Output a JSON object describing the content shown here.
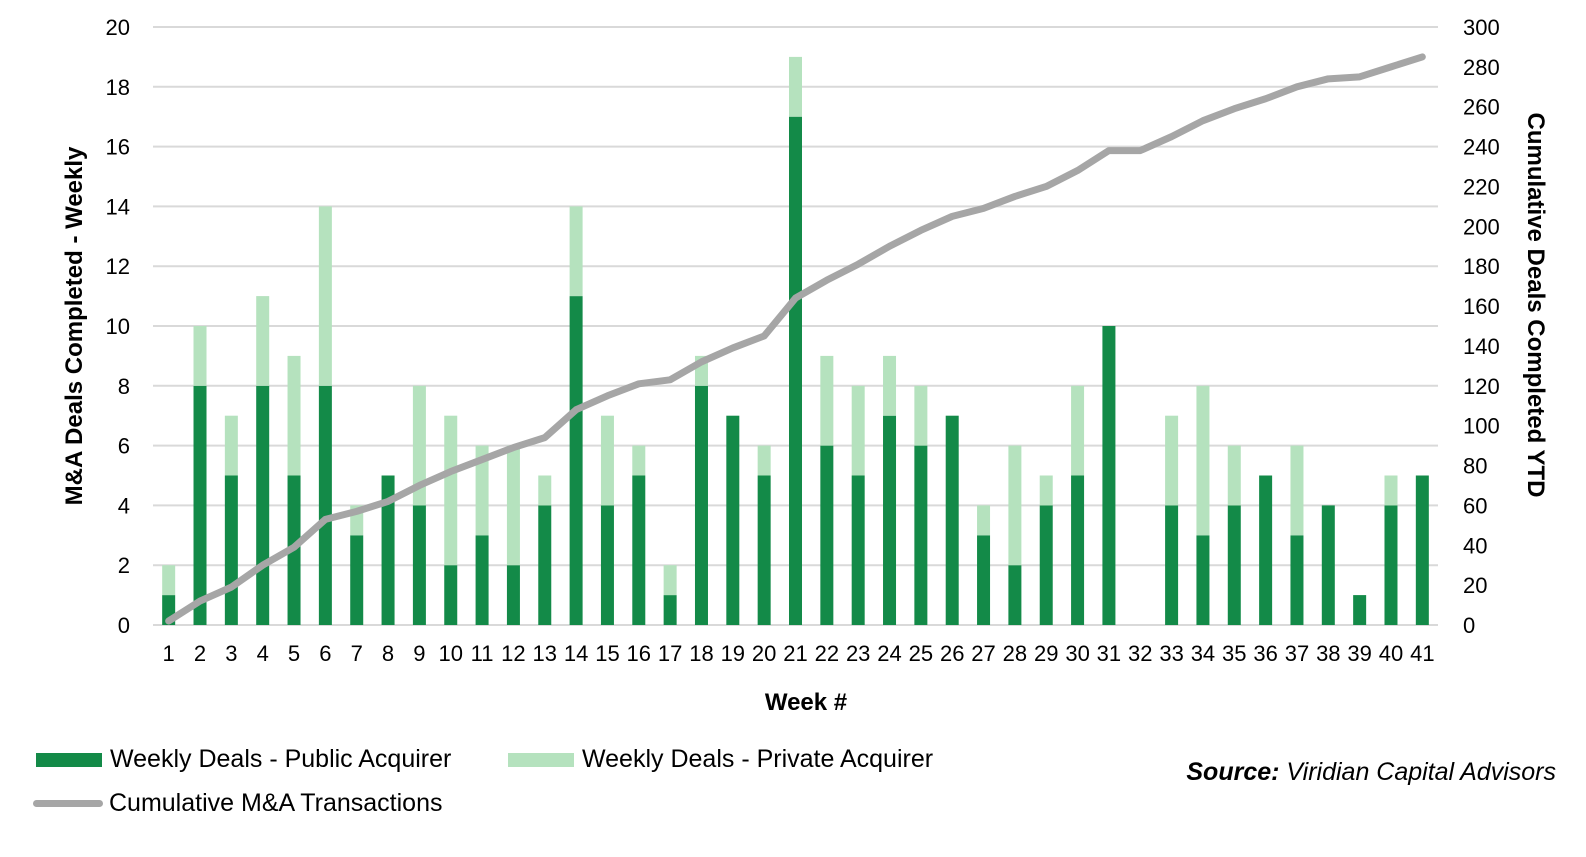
{
  "chart_data": {
    "type": "bar",
    "stacked": true,
    "xlabel": "Week #",
    "ylabel": "M&A Deals Completed - Weekly",
    "y2label": "Cumulative Deals Completed YTD",
    "ylim": [
      0,
      20
    ],
    "y2lim": [
      0,
      300
    ],
    "yticks": [
      "0",
      "2",
      "4",
      "6",
      "8",
      "10",
      "12",
      "14",
      "16",
      "18",
      "20"
    ],
    "y2ticks": [
      "0",
      "20",
      "40",
      "60",
      "80",
      "100",
      "120",
      "140",
      "160",
      "180",
      "200",
      "220",
      "240",
      "260",
      "280",
      "300"
    ],
    "grid": true,
    "categories": [
      "1",
      "2",
      "3",
      "4",
      "5",
      "6",
      "7",
      "8",
      "9",
      "10",
      "11",
      "12",
      "13",
      "14",
      "15",
      "16",
      "17",
      "18",
      "19",
      "20",
      "21",
      "22",
      "23",
      "24",
      "25",
      "26",
      "27",
      "28",
      "29",
      "30",
      "31",
      "32",
      "33",
      "34",
      "35",
      "36",
      "37",
      "38",
      "39",
      "40",
      "41"
    ],
    "series": [
      {
        "name": "Weekly Deals - Public Acquirer",
        "color": "#138A48",
        "axis": "left",
        "values": [
          1,
          8,
          5,
          8,
          5,
          8,
          3,
          5,
          4,
          2,
          3,
          2,
          4,
          11,
          4,
          5,
          1,
          8,
          7,
          5,
          17,
          6,
          5,
          7,
          6,
          7,
          3,
          2,
          4,
          5,
          10,
          0,
          4,
          3,
          4,
          5,
          3,
          4,
          1,
          4,
          5
        ]
      },
      {
        "name": "Weekly Deals - Private Acquirer",
        "color": "#B5E2BE",
        "axis": "left",
        "values": [
          1,
          2,
          2,
          3,
          4,
          6,
          1,
          0,
          4,
          5,
          3,
          4,
          1,
          3,
          3,
          1,
          1,
          1,
          0,
          1,
          2,
          3,
          3,
          2,
          2,
          0,
          1,
          4,
          1,
          3,
          0,
          0,
          3,
          5,
          2,
          0,
          3,
          0,
          0,
          1,
          0
        ]
      },
      {
        "name": "Cumulative M&A Transactions",
        "type": "line",
        "color": "#A6A6A6",
        "axis": "right",
        "values": [
          2,
          12,
          19,
          30,
          39,
          53,
          57,
          62,
          70,
          77,
          83,
          89,
          94,
          108,
          115,
          121,
          123,
          132,
          139,
          145,
          164,
          173,
          181,
          190,
          198,
          205,
          209,
          215,
          220,
          228,
          238,
          238,
          245,
          253,
          259,
          264,
          270,
          274,
          275,
          280,
          285
        ]
      }
    ],
    "legend_position": "bottom-left",
    "source_label": "Source:",
    "source_text": "Viridian Capital Advisors"
  }
}
